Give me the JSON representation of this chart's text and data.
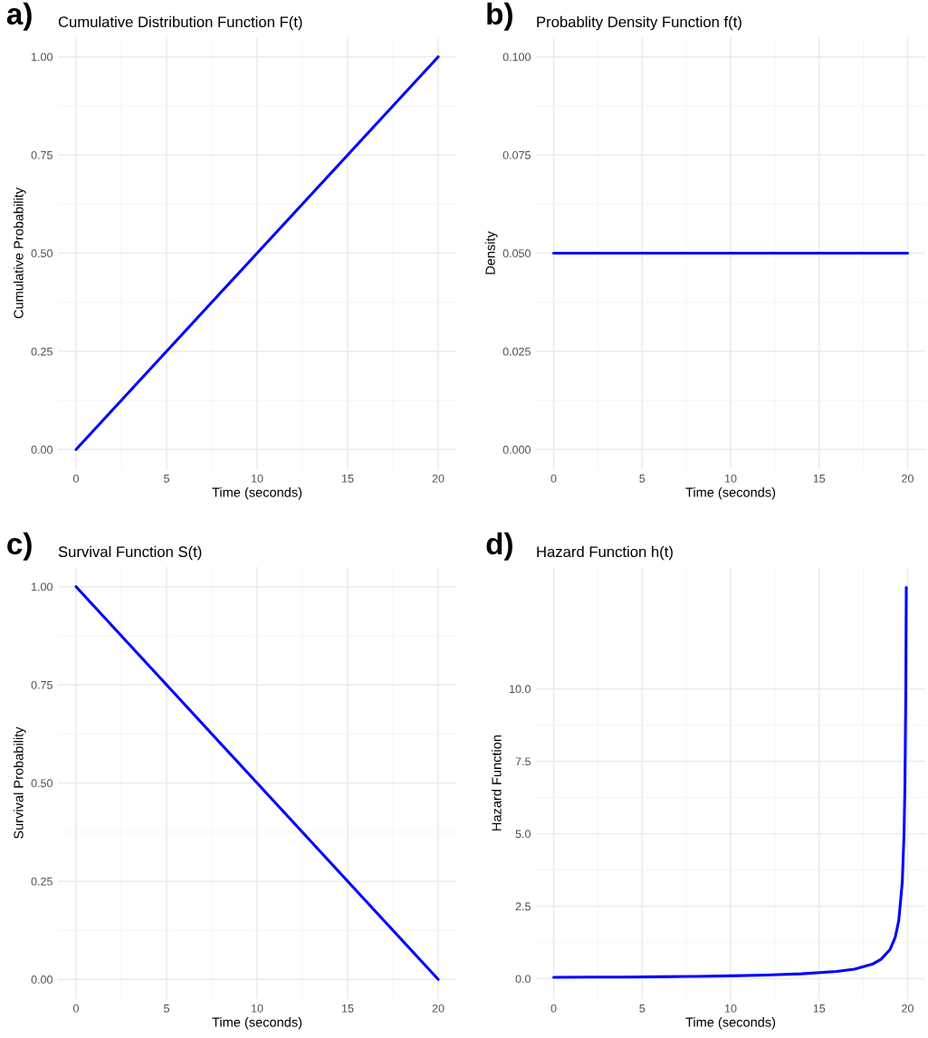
{
  "chart_data": [
    {
      "type": "line",
      "title": "Cumulative Distribution Function F(t)",
      "xlabel": "Time (seconds)",
      "ylabel": "Cumulative Probability",
      "annotations": [
        "a)"
      ],
      "x": [
        0,
        20
      ],
      "series": [
        {
          "color": "#0000ff",
          "values": [
            0,
            1
          ]
        }
      ],
      "xlim": [
        -1,
        21
      ],
      "ylim": [
        -0.05,
        1.05
      ],
      "xticks": [
        0,
        5,
        10,
        15,
        20
      ],
      "yticks": [
        {
          "value": 0,
          "label": "0.00"
        },
        {
          "value": 0.25,
          "label": "0.25"
        },
        {
          "value": 0.5,
          "label": "0.50"
        },
        {
          "value": 0.75,
          "label": "0.75"
        },
        {
          "value": 1,
          "label": "1.00"
        }
      ],
      "grid": true
    },
    {
      "type": "line",
      "title": "Probablity Density Function f(t)",
      "xlabel": "Time (seconds)",
      "ylabel": "Density",
      "annotations": [
        "b)"
      ],
      "x": [
        0,
        20
      ],
      "series": [
        {
          "color": "#0000ff",
          "values": [
            0.05,
            0.05
          ]
        }
      ],
      "xlim": [
        -1,
        21
      ],
      "ylim": [
        -0.005,
        0.105
      ],
      "xticks": [
        0,
        5,
        10,
        15,
        20
      ],
      "yticks": [
        {
          "value": 0,
          "label": "0.000"
        },
        {
          "value": 0.025,
          "label": "0.025"
        },
        {
          "value": 0.05,
          "label": "0.050"
        },
        {
          "value": 0.075,
          "label": "0.075"
        },
        {
          "value": 0.1,
          "label": "0.100"
        }
      ],
      "grid": true
    },
    {
      "type": "line",
      "title": "Survival Function S(t)",
      "xlabel": "Time (seconds)",
      "ylabel": "Survival Probability",
      "annotations": [
        "c)"
      ],
      "x": [
        0,
        20
      ],
      "series": [
        {
          "color": "#0000ff",
          "values": [
            1,
            0
          ]
        }
      ],
      "xlim": [
        -1,
        21
      ],
      "ylim": [
        -0.05,
        1.05
      ],
      "xticks": [
        0,
        5,
        10,
        15,
        20
      ],
      "yticks": [
        {
          "value": 0,
          "label": "0.00"
        },
        {
          "value": 0.25,
          "label": "0.25"
        },
        {
          "value": 0.5,
          "label": "0.50"
        },
        {
          "value": 0.75,
          "label": "0.75"
        },
        {
          "value": 1,
          "label": "1.00"
        }
      ],
      "grid": true
    },
    {
      "type": "line",
      "title": "Hazard Function h(t)",
      "xlabel": "Time (seconds)",
      "ylabel": "Hazard Function",
      "annotations": [
        "d)"
      ],
      "x": [
        0,
        2,
        4,
        6,
        8,
        10,
        12,
        14,
        16,
        17,
        18,
        18.5,
        19,
        19.3,
        19.5,
        19.7,
        19.8,
        19.85,
        19.9,
        19.926
      ],
      "series": [
        {
          "color": "#0000ff",
          "values": [
            0.05,
            0.06,
            0.06,
            0.07,
            0.08,
            0.1,
            0.13,
            0.17,
            0.25,
            0.33,
            0.5,
            0.67,
            1.0,
            1.43,
            2.0,
            3.33,
            5.0,
            6.67,
            10.0,
            13.5
          ]
        }
      ],
      "xlim": [
        -1,
        21
      ],
      "ylim": [
        -0.7,
        14.2
      ],
      "xticks": [
        0,
        5,
        10,
        15,
        20
      ],
      "yticks": [
        {
          "value": 0,
          "label": "0.0"
        },
        {
          "value": 2.5,
          "label": "2.5"
        },
        {
          "value": 5,
          "label": "5.0"
        },
        {
          "value": 7.5,
          "label": "7.5"
        },
        {
          "value": 10,
          "label": "10.0"
        }
      ],
      "grid": true
    }
  ]
}
